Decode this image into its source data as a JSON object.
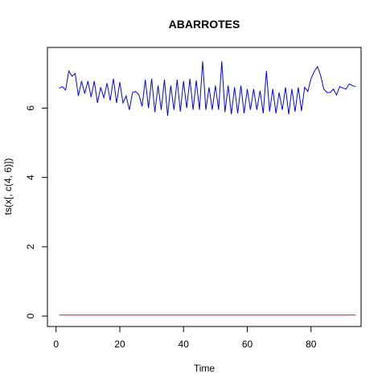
{
  "chart_data": {
    "type": "line",
    "title": "ABARROTES",
    "xlabel": "Time",
    "ylabel": "ts(x[, c(4, 6)])",
    "xlim": [
      -2.7,
      95.7
    ],
    "ylim": [
      -0.3,
      7.75
    ],
    "x_ticks": [
      0,
      20,
      40,
      60,
      80
    ],
    "y_ticks": [
      0,
      2,
      4,
      6
    ],
    "grid": false,
    "legend": "none",
    "x_start": 1,
    "series": [
      {
        "color": "#0000ff",
        "values": [
          6.58,
          6.62,
          6.52,
          7.07,
          6.92,
          7.0,
          6.35,
          6.78,
          6.42,
          6.78,
          6.32,
          6.78,
          6.15,
          6.6,
          6.3,
          6.72,
          6.22,
          6.85,
          6.15,
          6.75,
          6.15,
          6.35,
          5.95,
          6.45,
          6.48,
          6.38,
          6.05,
          6.82,
          6.0,
          6.85,
          5.88,
          6.65,
          5.95,
          6.82,
          5.78,
          6.65,
          5.95,
          6.82,
          5.9,
          6.78,
          6.0,
          6.85,
          5.95,
          6.8,
          5.95,
          7.35,
          5.95,
          6.6,
          5.95,
          6.65,
          5.95,
          7.35,
          5.88,
          6.65,
          5.82,
          6.6,
          5.85,
          6.65,
          5.85,
          6.55,
          5.95,
          6.55,
          5.95,
          6.5,
          5.85,
          7.07,
          5.9,
          6.55,
          5.85,
          6.45,
          5.95,
          6.6,
          5.82,
          6.55,
          5.9,
          6.6,
          5.92,
          6.6,
          6.48,
          6.85,
          7.05,
          7.2,
          6.95,
          6.55,
          6.45,
          6.45,
          6.55,
          6.38,
          6.62,
          6.58,
          6.55,
          6.7,
          6.65,
          6.62
        ]
      },
      {
        "color": "#ff0000",
        "values": [
          0.03,
          0.03,
          0.03,
          0.03,
          0.03,
          0.03,
          0.03,
          0.03,
          0.03,
          0.03,
          0.03,
          0.03,
          0.03,
          0.03,
          0.03,
          0.03,
          0.03,
          0.03,
          0.03,
          0.03,
          0.03,
          0.03,
          0.03,
          0.03,
          0.03,
          0.03,
          0.03,
          0.03,
          0.03,
          0.03,
          0.03,
          0.03,
          0.03,
          0.03,
          0.03,
          0.03,
          0.03,
          0.03,
          0.03,
          0.03,
          0.03,
          0.03,
          0.03,
          0.03,
          0.03,
          0.03,
          0.03,
          0.03,
          0.03,
          0.03,
          0.03,
          0.03,
          0.03,
          0.03,
          0.03,
          0.03,
          0.03,
          0.03,
          0.03,
          0.03,
          0.03,
          0.03,
          0.03,
          0.03,
          0.03,
          0.03,
          0.03,
          0.03,
          0.03,
          0.03,
          0.03,
          0.03,
          0.03,
          0.03,
          0.03,
          0.03,
          0.03,
          0.03,
          0.03,
          0.03,
          0.03,
          0.03,
          0.03,
          0.03,
          0.03,
          0.03,
          0.03,
          0.03,
          0.03,
          0.03,
          0.03,
          0.03,
          0.03,
          0.03
        ]
      }
    ]
  }
}
